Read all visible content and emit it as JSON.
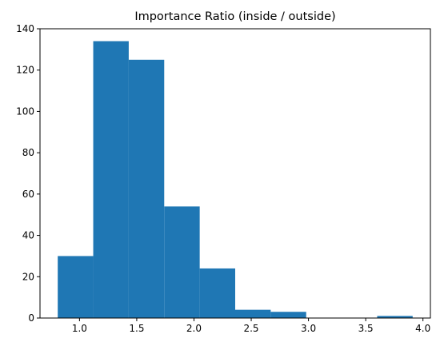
{
  "chart_data": {
    "type": "bar",
    "subtype": "histogram",
    "title": "Importance Ratio (inside / outside)",
    "xlabel": "",
    "ylabel": "",
    "bin_edges": [
      0.81,
      1.12,
      1.43,
      1.74,
      2.05,
      2.36,
      2.67,
      2.98,
      3.29,
      3.6,
      3.91
    ],
    "counts": [
      30,
      134,
      125,
      54,
      24,
      4,
      3,
      0,
      0,
      1
    ],
    "xlim": [
      0.655,
      4.065
    ],
    "ylim": [
      0,
      140
    ],
    "xticks": [
      1.0,
      1.5,
      2.0,
      2.5,
      3.0,
      3.5,
      4.0
    ],
    "xtick_labels": [
      "1.0",
      "1.5",
      "2.0",
      "2.5",
      "3.0",
      "3.5",
      "4.0"
    ],
    "yticks": [
      0,
      20,
      40,
      60,
      80,
      100,
      120,
      140
    ],
    "ytick_labels": [
      "0",
      "20",
      "40",
      "60",
      "80",
      "100",
      "120",
      "140"
    ],
    "bar_color": "#1f77b4",
    "grid": false,
    "legend": "none"
  }
}
